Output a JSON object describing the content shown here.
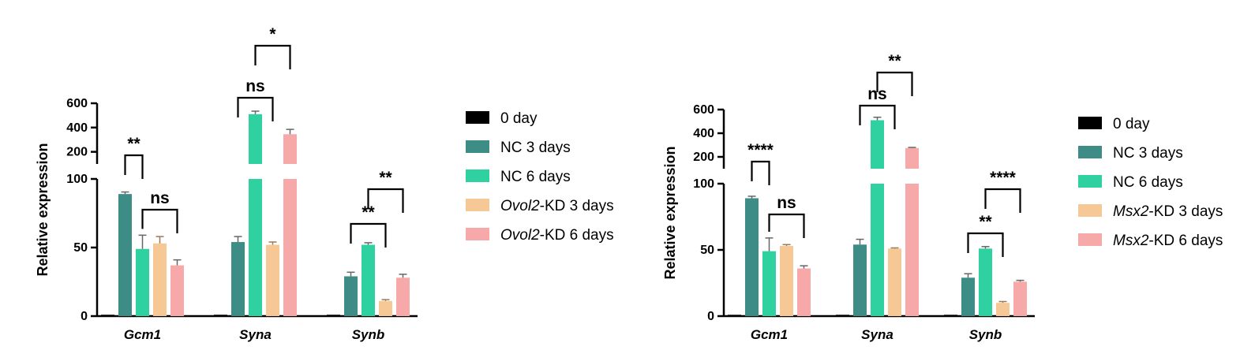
{
  "colors": {
    "day0": "#000000",
    "nc3": "#3d8c85",
    "nc6": "#2fd1a1",
    "kd3": "#f6c896",
    "kd6": "#f7a9a9"
  },
  "chart_data": [
    {
      "type": "bar",
      "ylabel": "Relative expression",
      "axis_break": {
        "lower": [
          0,
          100
        ],
        "upper": [
          100,
          600
        ]
      },
      "yticks_lower": [
        "0",
        "50",
        "100"
      ],
      "yticks_upper": [
        "200",
        "400",
        "600"
      ],
      "categories": [
        "Gcm1",
        "Syna",
        "Synb"
      ],
      "series": [
        {
          "name": "0 day",
          "color_key": "day0",
          "values": [
            1,
            1,
            1
          ],
          "errors": [
            0,
            0,
            0
          ]
        },
        {
          "name": "NC 3 days",
          "color_key": "nc3",
          "values": [
            89,
            54,
            29
          ],
          "errors": [
            1.5,
            4,
            3
          ]
        },
        {
          "name": "NC 6 days",
          "color_key": "nc6",
          "values": [
            49,
            510,
            52
          ],
          "errors": [
            10,
            25,
            1.5
          ]
        },
        {
          "name_italic": "Ovol2",
          "name_rest": "-KD 3 days",
          "color_key": "kd3",
          "values": [
            53,
            52,
            11
          ],
          "errors": [
            5,
            2,
            1
          ]
        },
        {
          "name_italic": "Ovol2",
          "name_rest": "-KD 6 days",
          "color_key": "kd6",
          "values": [
            37,
            345,
            28
          ],
          "errors": [
            4,
            40,
            2.5
          ]
        }
      ],
      "legend_position": "right",
      "annotations": [
        {
          "label": "**",
          "category": 0,
          "from": 1,
          "to": 2,
          "level": 1
        },
        {
          "label": "ns",
          "category": 0,
          "from": 2,
          "to": 4,
          "level": 0
        },
        {
          "label": "ns",
          "category": 1,
          "from": 1,
          "to": 3,
          "level": 2
        },
        {
          "label": "*",
          "category": 1,
          "from": 2,
          "to": 4,
          "level": 3
        },
        {
          "label": "**",
          "category": 2,
          "from": 1,
          "to": 3,
          "level": 0
        },
        {
          "label": "**",
          "category": 2,
          "from": 2,
          "to": 4,
          "level": 1
        }
      ]
    },
    {
      "type": "bar",
      "ylabel": "Relative expression",
      "axis_break": {
        "lower": [
          0,
          100
        ],
        "upper": [
          100,
          600
        ]
      },
      "yticks_lower": [
        "0",
        "50",
        "100"
      ],
      "yticks_upper": [
        "200",
        "400",
        "600"
      ],
      "categories": [
        "Gcm1",
        "Syna",
        "Synb"
      ],
      "series": [
        {
          "name": "0 day",
          "color_key": "day0",
          "values": [
            1,
            1,
            1
          ],
          "errors": [
            0,
            0,
            0
          ]
        },
        {
          "name": "NC 3 days",
          "color_key": "nc3",
          "values": [
            89,
            54,
            29
          ],
          "errors": [
            1.5,
            4,
            3
          ]
        },
        {
          "name": "NC 6 days",
          "color_key": "nc6",
          "values": [
            49,
            510,
            51
          ],
          "errors": [
            10,
            25,
            1.5
          ]
        },
        {
          "name_italic": "Msx2",
          "name_rest": "-KD 3 days",
          "color_key": "kd3",
          "values": [
            53,
            51,
            10
          ],
          "errors": [
            1,
            0.5,
            1
          ]
        },
        {
          "name_italic": "Msx2",
          "name_rest": "-KD 6 days",
          "color_key": "kd6",
          "values": [
            36,
            275,
            26
          ],
          "errors": [
            2,
            5,
            1
          ]
        }
      ],
      "legend_position": "right",
      "annotations": [
        {
          "label": "****",
          "category": 0,
          "from": 1,
          "to": 2,
          "level": 1
        },
        {
          "label": "ns",
          "category": 0,
          "from": 2,
          "to": 4,
          "level": 0
        },
        {
          "label": "ns",
          "category": 1,
          "from": 1,
          "to": 3,
          "level": 2
        },
        {
          "label": "**",
          "category": 1,
          "from": 2,
          "to": 4,
          "level": 3
        },
        {
          "label": "**",
          "category": 2,
          "from": 1,
          "to": 3,
          "level": 0
        },
        {
          "label": "****",
          "category": 2,
          "from": 2,
          "to": 4,
          "level": 1
        }
      ]
    }
  ]
}
